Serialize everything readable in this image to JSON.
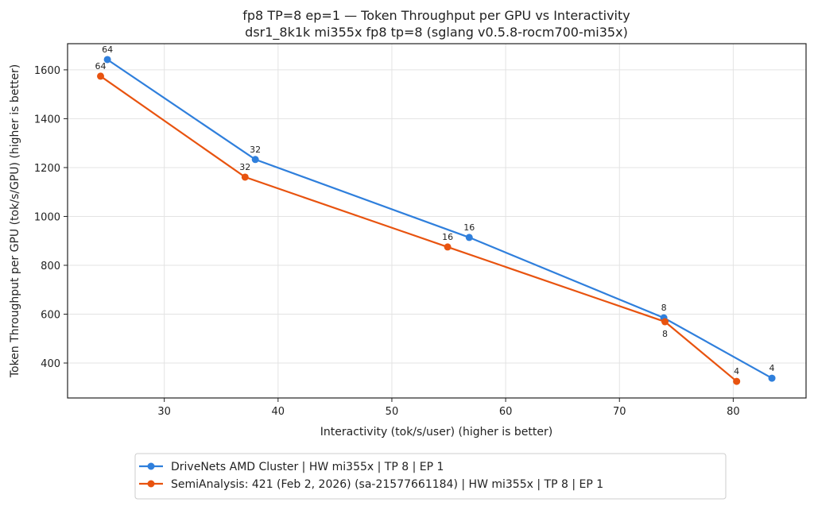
{
  "chart_data": {
    "type": "line",
    "title": "fp8 TP=8 ep=1 — Token Throughput per GPU vs Interactivity",
    "subtitle": "dsr1_8k1k mi355x fp8 tp=8 (sglang v0.5.8-rocm700-mi35x)",
    "xlabel": "Interactivity (tok/s/user) (higher is better)",
    "ylabel": "Token Throughput per GPU (tok/s/GPU) (higher is better)",
    "xlim": [
      21.5,
      86.4
    ],
    "ylim": [
      257,
      1707
    ],
    "xticks": [
      30,
      40,
      50,
      60,
      70,
      80
    ],
    "yticks": [
      400,
      600,
      800,
      1000,
      1200,
      1400,
      1600
    ],
    "grid": true,
    "legend_position": "bottom-center, below plot",
    "series": [
      {
        "name": "DriveNets AMD Cluster | HW mi355x | TP 8 | EP 1",
        "color": "#2f7fdc",
        "x": [
          25.0,
          38.0,
          56.8,
          73.9,
          83.4
        ],
        "y": [
          1642,
          1233,
          914,
          585,
          338
        ],
        "labels": [
          "64",
          "32",
          "16",
          "8",
          "4"
        ]
      },
      {
        "name": "SemiAnalysis: 421 (Feb 2, 2026) (sa-21577661184) | HW mi355x | TP 8 | EP 1",
        "color": "#e8530f",
        "x": [
          24.4,
          37.1,
          54.9,
          74.0,
          80.3
        ],
        "y": [
          1574,
          1161,
          875,
          569,
          325
        ],
        "labels": [
          "64",
          "32",
          "16",
          "8",
          "4"
        ]
      }
    ]
  }
}
